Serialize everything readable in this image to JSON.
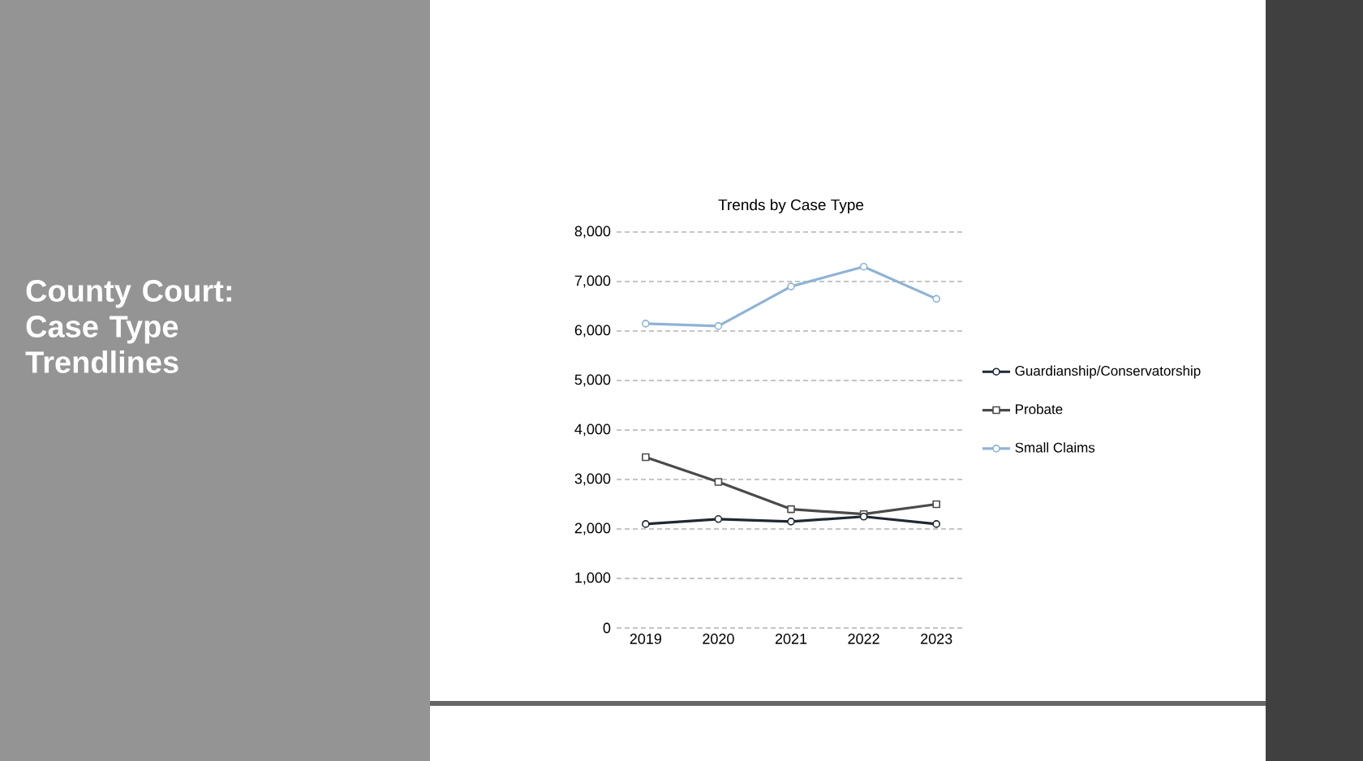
{
  "chart_data": {
    "type": "line",
    "title": "Trends by Case Type",
    "annotations": [
      "County Court: Case Type Trendlines"
    ],
    "categories": [
      "2019",
      "2020",
      "2021",
      "2022",
      "2023"
    ],
    "series": [
      {
        "name": "Guardianship/Conservatorship",
        "color": "#1f2833",
        "marker": "circle",
        "values": [
          2100,
          2200,
          2150,
          2250,
          2100
        ]
      },
      {
        "name": "Probate",
        "color": "#4a4a4a",
        "marker": "square",
        "values": [
          3450,
          2950,
          2400,
          2300,
          2500
        ]
      },
      {
        "name": "Small Claims",
        "color": "#8fb3d6",
        "marker": "circle",
        "values": [
          6150,
          6100,
          6900,
          7300,
          6650
        ]
      }
    ],
    "ylim": [
      0,
      8000
    ],
    "yticks": [
      {
        "value": 0,
        "label": "0"
      },
      {
        "value": 1000,
        "label": "1,000"
      },
      {
        "value": 2000,
        "label": "2,000"
      },
      {
        "value": 3000,
        "label": "3,000"
      },
      {
        "value": 4000,
        "label": "4,000"
      },
      {
        "value": 5000,
        "label": "5,000"
      },
      {
        "value": 6000,
        "label": "6,000"
      },
      {
        "value": 7000,
        "label": "7,000"
      },
      {
        "value": 8000,
        "label": "8,000"
      }
    ],
    "grid": "y",
    "legend": "right"
  }
}
